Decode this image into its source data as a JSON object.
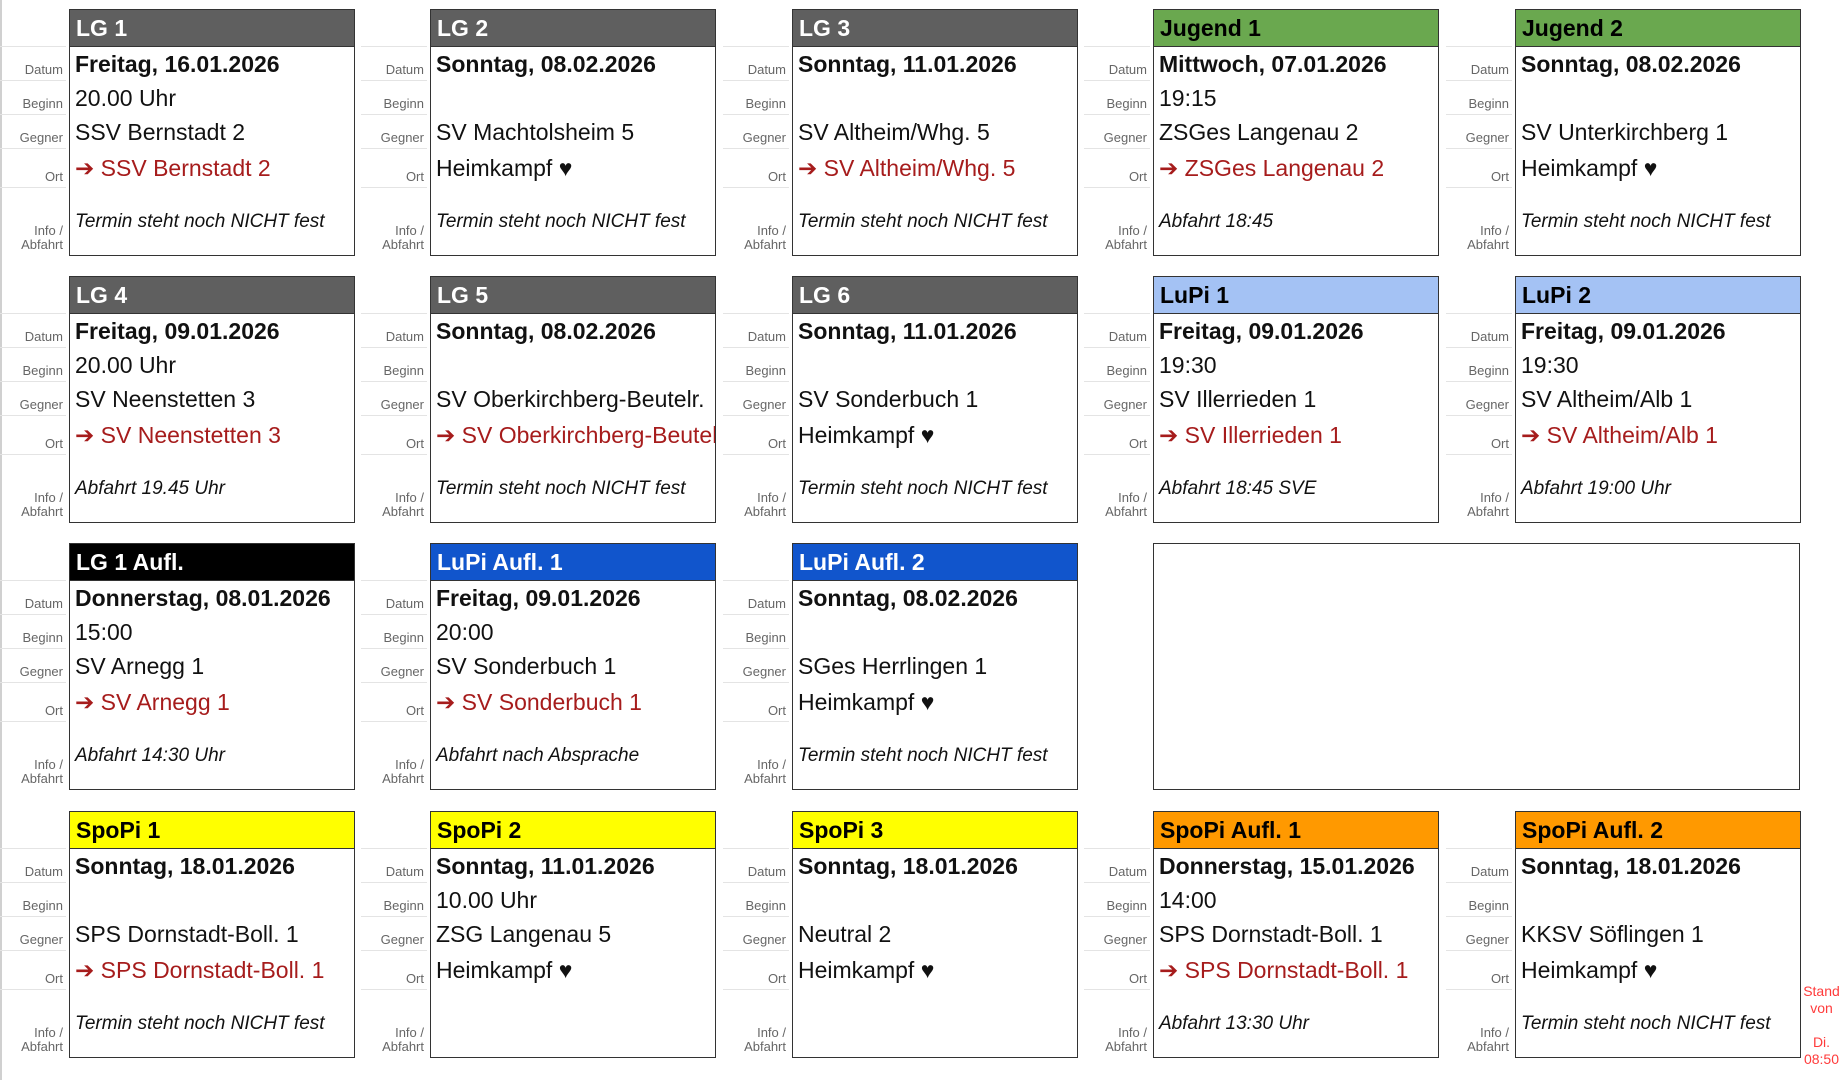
{
  "labels": {
    "datum": "Datum",
    "beginn": "Beginn",
    "gegner": "Gegner",
    "ort": "Ort",
    "info_1": "Info /",
    "info_2": "Abfahrt"
  },
  "cards": [
    {
      "title": "LG 1",
      "bg": "#5f5f5f",
      "fg": "#ffffff",
      "datum": "Freitag, 16.01.2026",
      "beginn": "20.00 Uhr",
      "gegner": "SSV Bernstadt 2",
      "ort": "➔ SSV Bernstadt 2",
      "away": true,
      "info": "Termin steht noch NICHT fest"
    },
    {
      "title": "LG 2",
      "bg": "#5f5f5f",
      "fg": "#ffffff",
      "datum": "Sonntag, 08.02.2026",
      "beginn": "",
      "gegner": "SV Machtolsheim 5",
      "ort": "Heimkampf ♥",
      "away": false,
      "info": "Termin steht noch NICHT fest"
    },
    {
      "title": "LG 3",
      "bg": "#5f5f5f",
      "fg": "#ffffff",
      "datum": "Sonntag, 11.01.2026",
      "beginn": "",
      "gegner": "SV Altheim/Whg. 5",
      "ort": "➔ SV Altheim/Whg. 5",
      "away": true,
      "info": "Termin steht noch NICHT fest"
    },
    {
      "title": "Jugend 1",
      "bg": "#6aa84f",
      "fg": "#000000",
      "datum": "Mittwoch, 07.01.2026",
      "beginn": "19:15",
      "gegner": "ZSGes Langenau 2",
      "ort": "➔ ZSGes Langenau 2",
      "away": true,
      "info": "Abfahrt 18:45"
    },
    {
      "title": "Jugend 2",
      "bg": "#6aa84f",
      "fg": "#000000",
      "datum": "Sonntag, 08.02.2026",
      "beginn": "",
      "gegner": "SV Unterkirchberg 1",
      "ort": "Heimkampf ♥",
      "away": false,
      "info": "Termin steht noch NICHT fest"
    },
    {
      "title": "LG 4",
      "bg": "#5f5f5f",
      "fg": "#ffffff",
      "datum": "Freitag, 09.01.2026",
      "beginn": "20.00 Uhr",
      "gegner": "SV Neenstetten 3",
      "ort": "➔ SV Neenstetten 3",
      "away": true,
      "info": "Abfahrt 19.45 Uhr"
    },
    {
      "title": "LG 5",
      "bg": "#5f5f5f",
      "fg": "#ffffff",
      "datum": "Sonntag, 08.02.2026",
      "beginn": "",
      "gegner": "SV Oberkirchberg-Beutelr.",
      "ort": "➔ SV Oberkirchberg-Beutelr.",
      "away": true,
      "info": "Termin steht noch NICHT fest"
    },
    {
      "title": "LG 6",
      "bg": "#5f5f5f",
      "fg": "#ffffff",
      "datum": "Sonntag, 11.01.2026",
      "beginn": "",
      "gegner": "SV Sonderbuch 1",
      "ort": "Heimkampf ♥",
      "away": false,
      "info": "Termin steht noch NICHT fest"
    },
    {
      "title": "LuPi 1",
      "bg": "#a4c2f4",
      "fg": "#000000",
      "datum": "Freitag, 09.01.2026",
      "beginn": "19:30",
      "gegner": "SV Illerrieden 1",
      "ort": "➔ SV Illerrieden 1",
      "away": true,
      "info": "Abfahrt 18:45 SVE"
    },
    {
      "title": "LuPi 2",
      "bg": "#a4c2f4",
      "fg": "#000000",
      "datum": "Freitag, 09.01.2026",
      "beginn": "19:30",
      "gegner": "SV Altheim/Alb 1",
      "ort": "➔ SV Altheim/Alb 1",
      "away": true,
      "info": "Abfahrt 19:00 Uhr"
    },
    {
      "title": "LG 1 Aufl.",
      "bg": "#000000",
      "fg": "#ffffff",
      "datum": "Donnerstag, 08.01.2026",
      "beginn": "15:00",
      "gegner": "SV Arnegg 1",
      "ort": "➔ SV Arnegg 1",
      "away": true,
      "info": "Abfahrt 14:30 Uhr"
    },
    {
      "title": "LuPi Aufl. 1",
      "bg": "#1155cc",
      "fg": "#ffffff",
      "datum": "Freitag, 09.01.2026",
      "beginn": "20:00",
      "gegner": "SV Sonderbuch 1",
      "ort": "➔ SV Sonderbuch 1",
      "away": true,
      "info": "Abfahrt nach Absprache"
    },
    {
      "title": "LuPi Aufl. 2",
      "bg": "#1155cc",
      "fg": "#ffffff",
      "datum": "Sonntag, 08.02.2026",
      "beginn": "",
      "gegner": "SGes Herrlingen 1",
      "ort": "Heimkampf ♥",
      "away": false,
      "info": "Termin steht noch NICHT fest"
    },
    {
      "title": "SpoPi 1",
      "bg": "#ffff00",
      "fg": "#000000",
      "datum": "Sonntag, 18.01.2026",
      "beginn": "",
      "gegner": "SPS Dornstadt-Boll. 1",
      "ort": "➔ SPS Dornstadt-Boll. 1",
      "away": true,
      "info": "Termin steht noch NICHT fest"
    },
    {
      "title": "SpoPi 2",
      "bg": "#ffff00",
      "fg": "#000000",
      "datum": "Sonntag, 11.01.2026",
      "beginn": "10.00 Uhr",
      "gegner": "ZSG Langenau 5",
      "ort": "Heimkampf ♥",
      "away": false,
      "info": ""
    },
    {
      "title": "SpoPi 3",
      "bg": "#ffff00",
      "fg": "#000000",
      "datum": "Sonntag, 18.01.2026",
      "beginn": "",
      "gegner": "Neutral 2",
      "ort": "Heimkampf ♥",
      "away": false,
      "info": ""
    },
    {
      "title": "SpoPi Aufl. 1",
      "bg": "#ff9900",
      "fg": "#000000",
      "datum": "Donnerstag, 15.01.2026",
      "beginn": "14:00",
      "gegner": "SPS Dornstadt-Boll. 1",
      "ort": "➔ SPS Dornstadt-Boll. 1",
      "away": true,
      "info": "Abfahrt 13:30 Uhr"
    },
    {
      "title": "SpoPi Aufl. 2",
      "bg": "#ff9900",
      "fg": "#000000",
      "datum": "Sonntag, 18.01.2026",
      "beginn": "",
      "gegner": "KKSV Söflingen 1",
      "ort": "Heimkampf ♥",
      "away": false,
      "info": "Termin steht noch NICHT fest"
    }
  ],
  "stand": {
    "line1": "Stand",
    "line2": "von",
    "line3": "Di.",
    "line4": "08:50"
  }
}
